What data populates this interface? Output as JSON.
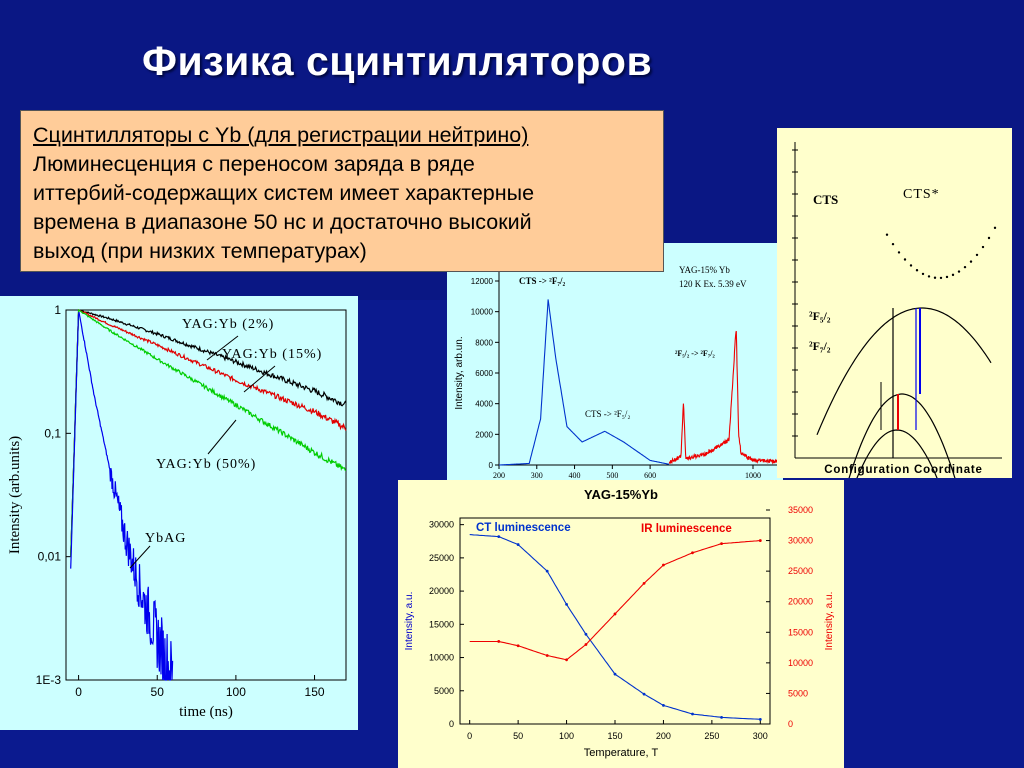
{
  "slide": {
    "title": "Физика сцинтилляторов",
    "textbox": {
      "heading": "Сцинтилляторы с Yb (для регистрации нейтрино)",
      "lines": [
        "Люминесценция с переносом заряда в ряде",
        "иттербий-содержащих систем имеет характерные",
        "времена в диапазоне 50 нс и достаточно высокий",
        "выход (при низких температурах)"
      ]
    }
  },
  "colors": {
    "background": "#0b1a8f",
    "textbox": "#ffcc99",
    "panel_decay": "#ccffff",
    "panel_spectrum": "#ccffff",
    "panel_diagram": "#ffffcc",
    "panel_temperature": "#ffffcc"
  },
  "chart_data": [
    {
      "type": "line",
      "xlabel": "time (ns)",
      "ylabel": "Intensity (arb.units)",
      "xlim": [
        -8,
        170
      ],
      "ylim": [
        0.001,
        1
      ],
      "yscale": "log",
      "xticks": [
        "0",
        "50",
        "100",
        "150"
      ],
      "yticks": [
        "1",
        "0,1",
        "0,01",
        "1E-3"
      ],
      "series": [
        {
          "name": "YAG:Yb (2%)",
          "color": "#000000",
          "x": [
            -5,
            0,
            20,
            50,
            100,
            150,
            170
          ],
          "y": [
            0.01,
            1,
            0.85,
            0.64,
            0.38,
            0.22,
            0.17
          ]
        },
        {
          "name": "YAG:Yb (15%)",
          "color": "#e00000",
          "x": [
            -5,
            0,
            20,
            50,
            100,
            150,
            170
          ],
          "y": [
            0.01,
            1,
            0.76,
            0.52,
            0.27,
            0.15,
            0.11
          ]
        },
        {
          "name": "YAG:Yb (50%)",
          "color": "#00cc00",
          "x": [
            -5,
            0,
            20,
            50,
            100,
            150,
            170
          ],
          "y": [
            0.01,
            1,
            0.68,
            0.4,
            0.17,
            0.07,
            0.05
          ]
        },
        {
          "name": "YbAG",
          "color": "#0000ee",
          "x": [
            -5,
            0,
            5,
            10,
            20,
            30,
            40,
            50,
            60
          ],
          "y": [
            0.008,
            1,
            0.45,
            0.2,
            0.05,
            0.014,
            0.005,
            0.0022,
            0.001
          ]
        }
      ],
      "annotations": [
        "YAG:Yb (2%)",
        "YAG:Yb (15%)",
        "YAG:Yb (50%)",
        "YbAG"
      ]
    },
    {
      "type": "line",
      "ylabel": "Intensity, arb.un.",
      "xlim": [
        200,
        1100
      ],
      "ylim": [
        0,
        12000
      ],
      "xticks": [
        "200",
        "300",
        "400",
        "500",
        "600",
        "1000"
      ],
      "yticks": [
        "0",
        "2000",
        "4000",
        "6000",
        "8000",
        "10000",
        "12000"
      ],
      "series": [
        {
          "name": "CT",
          "color": "#0033cc",
          "x": [
            200,
            280,
            310,
            330,
            350,
            380,
            420,
            480,
            530,
            600,
            650
          ],
          "y": [
            0,
            100,
            3000,
            10800,
            7000,
            2500,
            1500,
            2200,
            1500,
            300,
            50
          ]
        },
        {
          "name": "IR",
          "color": "#ee0000",
          "x": [
            650,
            700,
            710,
            720,
            800,
            900,
            930,
            940,
            950,
            1000,
            1100
          ],
          "y": [
            50,
            400,
            4000,
            300,
            600,
            1500,
            8900,
            2000,
            600,
            200,
            100
          ]
        }
      ],
      "annotations": [
        "YAG-15% Yb",
        "120 K Ex. 5.39 eV",
        "CTS -> ²F₇/₂",
        "CTS -> ²F₅/₂",
        "²F₅/₂ -> ²F₇/₂"
      ]
    },
    {
      "type": "diagram",
      "xlabel": "Configuration Coordinate",
      "labels": [
        "CTS",
        "CTS*",
        "²F₅/₂",
        "²F₇/₂"
      ]
    },
    {
      "type": "line",
      "title": "YAG-15%Yb",
      "xlabel": "Temperature, T",
      "ylabel": "Intensity, a.u.",
      "ylabel_right": "Intensity, a.u.",
      "xlim": [
        -10,
        310
      ],
      "ylim": [
        0,
        31000
      ],
      "ylim_right": [
        0,
        35000
      ],
      "xticks": [
        "0",
        "50",
        "100",
        "150",
        "200",
        "250",
        "300"
      ],
      "yticks": [
        "0",
        "5000",
        "10000",
        "15000",
        "20000",
        "25000",
        "30000"
      ],
      "yticks_right": [
        "0",
        "5000",
        "10000",
        "15000",
        "20000",
        "25000",
        "30000",
        "35000"
      ],
      "series": [
        {
          "name": "CT luminescence",
          "color": "#0033cc",
          "axis": "left",
          "x": [
            0,
            30,
            50,
            80,
            100,
            120,
            150,
            180,
            200,
            230,
            260,
            300
          ],
          "y": [
            28500,
            28200,
            27000,
            23000,
            18000,
            13500,
            7500,
            4500,
            2800,
            1500,
            1000,
            700
          ]
        },
        {
          "name": "IR luminescence",
          "color": "#ee0000",
          "axis": "right",
          "x": [
            0,
            30,
            50,
            80,
            100,
            120,
            150,
            180,
            200,
            230,
            260,
            300
          ],
          "y": [
            13500,
            13500,
            12800,
            11200,
            10500,
            13000,
            18000,
            23000,
            26000,
            28000,
            29500,
            30000
          ]
        }
      ],
      "legend": [
        "CT luminescence",
        "IR luminescence"
      ]
    }
  ]
}
